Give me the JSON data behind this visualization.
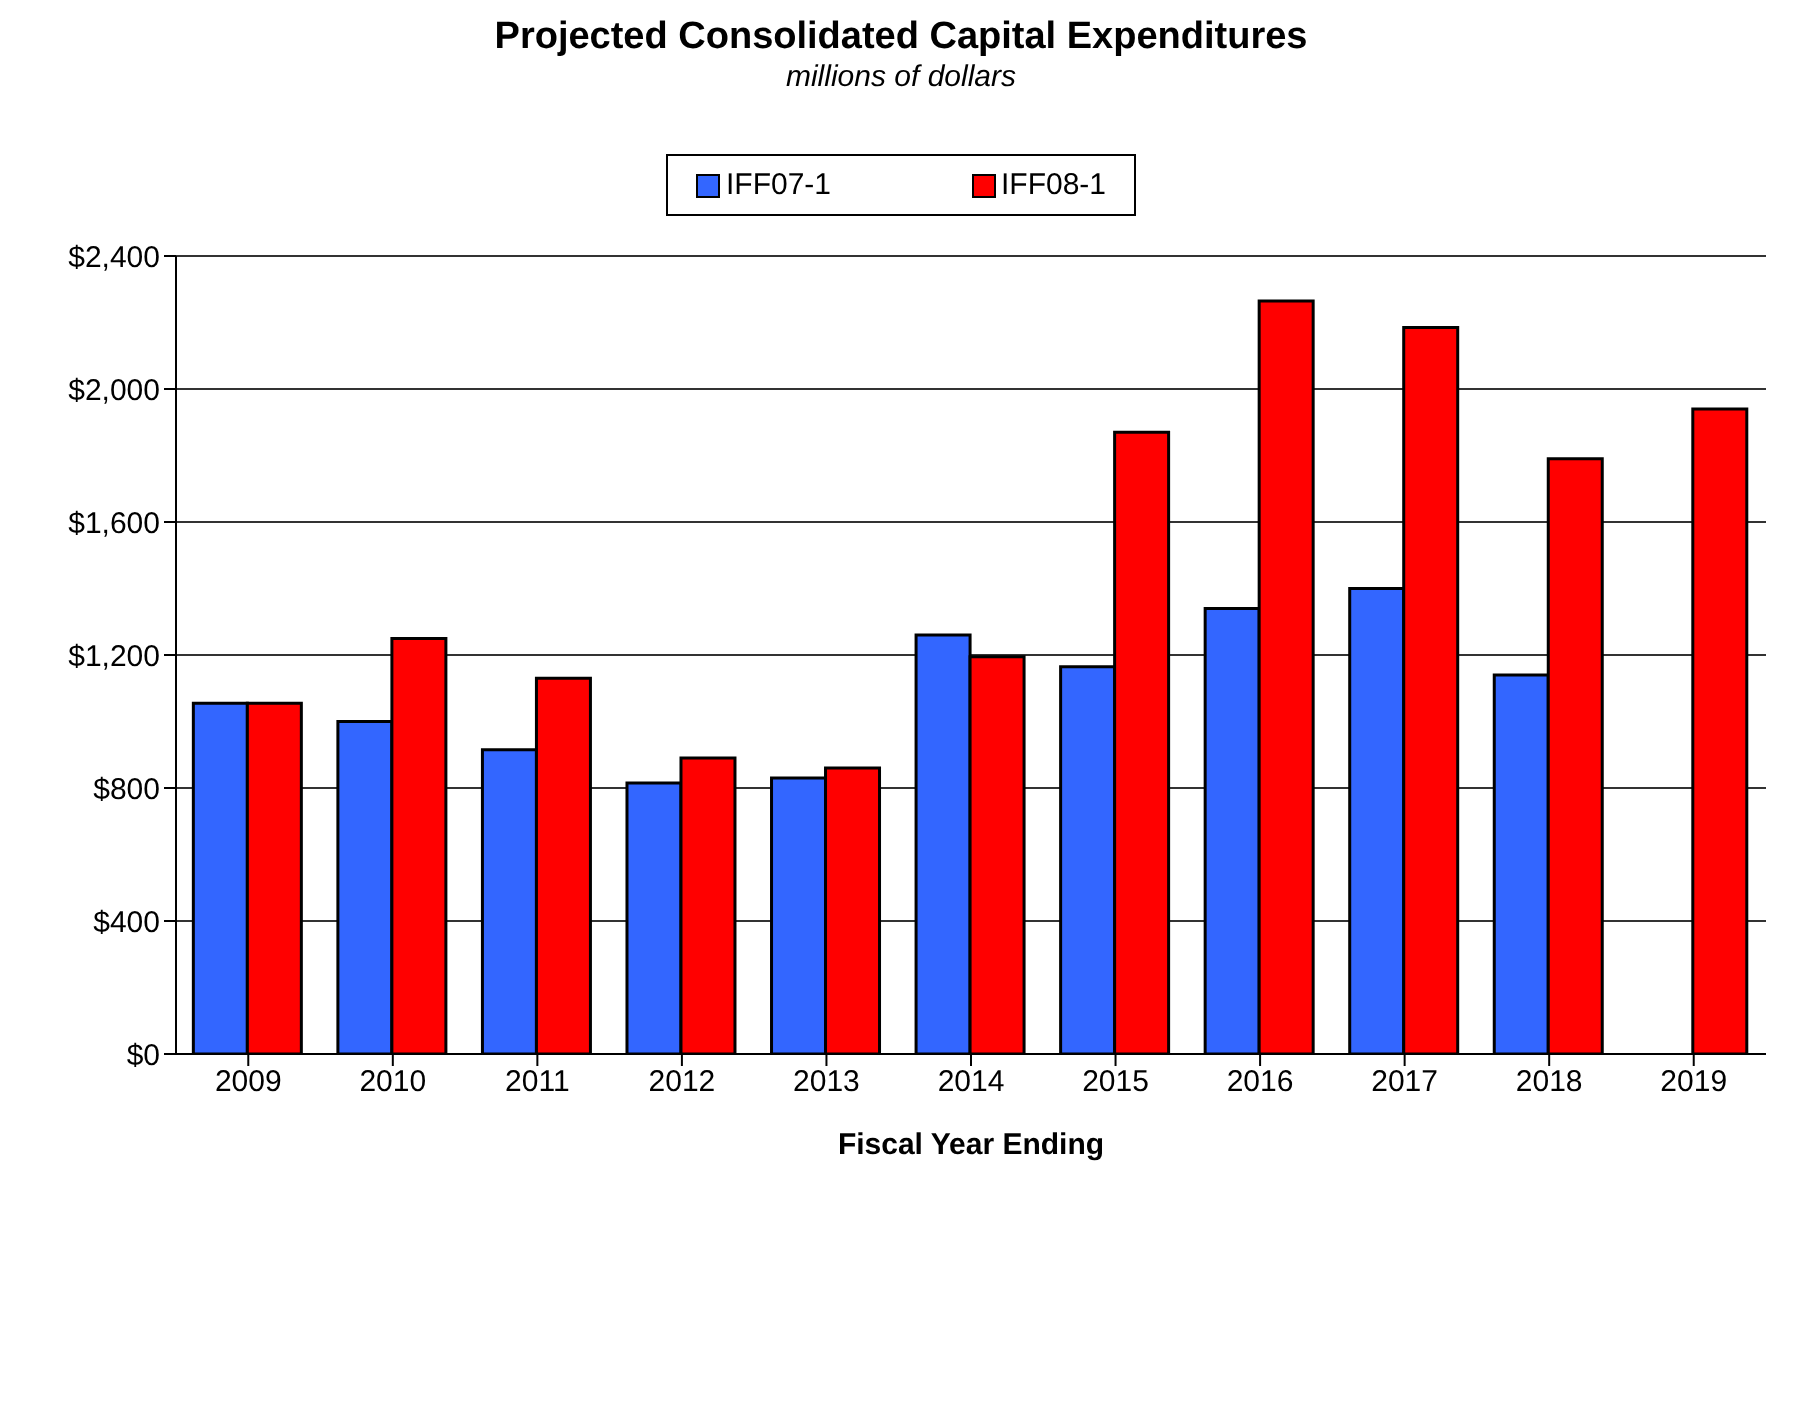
{
  "chart_data": {
    "type": "bar",
    "title": "Projected Consolidated Capital Expenditures",
    "subtitle": "millions of dollars",
    "xlabel": "Fiscal Year Ending",
    "categories": [
      "2009",
      "2010",
      "2011",
      "2012",
      "2013",
      "2014",
      "2015",
      "2016",
      "2017",
      "2018",
      "2019"
    ],
    "series": [
      {
        "name": "IFF07-1",
        "color": "#3366ff",
        "values": [
          1055,
          1000,
          915,
          815,
          830,
          1260,
          1165,
          1340,
          1400,
          1140,
          null
        ]
      },
      {
        "name": "IFF08-1",
        "color": "#ff0000",
        "values": [
          1055,
          1250,
          1130,
          890,
          860,
          1195,
          1870,
          2265,
          2185,
          1790,
          1940
        ]
      }
    ],
    "ylim": [
      0,
      2400
    ],
    "yticks": [
      {
        "value": 0,
        "label": "$0"
      },
      {
        "value": 400,
        "label": "$400"
      },
      {
        "value": 800,
        "label": "$800"
      },
      {
        "value": 1200,
        "label": "$1,200"
      },
      {
        "value": 1600,
        "label": "$1,600"
      },
      {
        "value": 2000,
        "label": "$2,000"
      },
      {
        "value": 2400,
        "label": "$2,400"
      }
    ],
    "grid": "y",
    "legend": "top"
  }
}
